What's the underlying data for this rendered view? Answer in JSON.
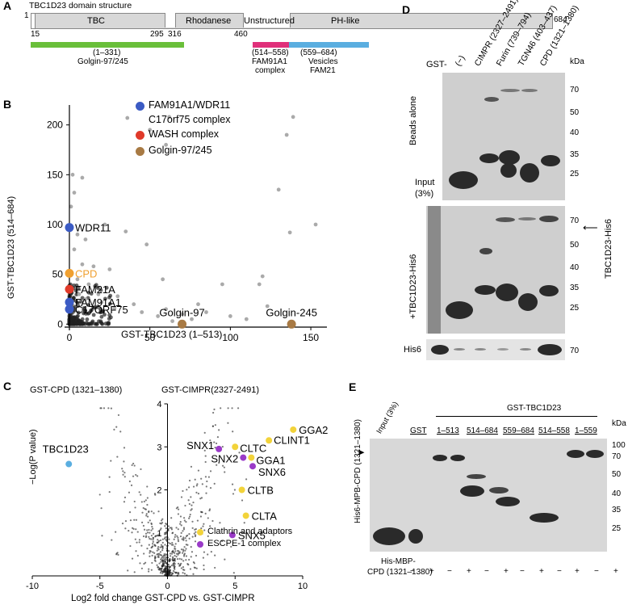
{
  "panels": {
    "A": "A",
    "B": "B",
    "C": "C",
    "D": "D",
    "E": "E"
  },
  "panelA": {
    "title": "TBC1D23 domain structure",
    "domains": [
      "TBC",
      "Rhodanese",
      "Unstructured",
      "PH-like"
    ],
    "positions": {
      "start": "1",
      "p15": "15",
      "p295": "295",
      "p316": "316",
      "p460": "460",
      "end": "684"
    },
    "bars": [
      {
        "range": "(1–331)",
        "label": "Golgin-97/245",
        "color": "#6abf3a"
      },
      {
        "range": "(514–558)",
        "label1": "FAM91A1",
        "label2": "complex",
        "color": "#e0307a"
      },
      {
        "range": "(559–684)",
        "label1": "Vesicles",
        "label2": "FAM21",
        "color": "#5aaee0"
      }
    ]
  },
  "panelB": {
    "xlabel": "GST-TBC1D23 (1–513)",
    "ylabel": "GST-TBC1D23 (514–684)",
    "legend": [
      {
        "label": "FAM91A1/WDR11",
        "label2": "C17orf75 complex",
        "color": "#3b5bc4"
      },
      {
        "label": "WASH complex",
        "color": "#e03a2a"
      },
      {
        "label": "Golgin-97/245",
        "color": "#a87a44"
      }
    ],
    "annotations": [
      "WDR11",
      "CPD",
      "FAM21A",
      "FAM91A1",
      "C17ORF75",
      "Golgin-97",
      "Golgin-245"
    ]
  },
  "chart_data": [
    {
      "type": "scatter",
      "xlabel": "GST-TBC1D23 (1–513)",
      "ylabel": "GST-TBC1D23 (514–684)",
      "xlim": [
        -3,
        160
      ],
      "ylim": [
        -3,
        220
      ],
      "xticks": [
        0,
        50,
        100,
        150
      ],
      "yticks": [
        0,
        50,
        100,
        150,
        200
      ],
      "highlighted": [
        {
          "name": "WDR11",
          "x": 0,
          "y": 97,
          "group": "FAM91A1/WDR11 C17orf75 complex",
          "color": "#3b5bc4"
        },
        {
          "name": "CPD",
          "x": 0,
          "y": 51,
          "group": "other",
          "color": "#f0a030"
        },
        {
          "name": "FAM21A",
          "x": 0,
          "y": 35,
          "group": "WASH complex",
          "color": "#e03a2a"
        },
        {
          "name": "FAM91A1",
          "x": 0,
          "y": 22,
          "group": "FAM91A1/WDR11 C17orf75 complex",
          "color": "#3b5bc4"
        },
        {
          "name": "C17ORF75",
          "x": 0,
          "y": 15,
          "group": "FAM91A1/WDR11 C17orf75 complex",
          "color": "#3b5bc4"
        },
        {
          "name": "Golgin-97",
          "x": 70,
          "y": 0,
          "group": "Golgin-97/245",
          "color": "#a87a44"
        },
        {
          "name": "Golgin-245",
          "x": 138,
          "y": 0,
          "group": "Golgin-97/245",
          "color": "#a87a44"
        }
      ],
      "background_points": [
        [
          36,
          207
        ],
        [
          50,
          195
        ],
        [
          62,
          208
        ],
        [
          60,
          180
        ],
        [
          139,
          208
        ],
        [
          135,
          190
        ],
        [
          130,
          135
        ],
        [
          153,
          100
        ],
        [
          137,
          92
        ],
        [
          120,
          48
        ],
        [
          95,
          40
        ],
        [
          58,
          45
        ],
        [
          48,
          80
        ],
        [
          35,
          93
        ],
        [
          8,
          147
        ],
        [
          2,
          150
        ],
        [
          3,
          132
        ],
        [
          1,
          118
        ],
        [
          22,
          100
        ],
        [
          5,
          90
        ],
        [
          10,
          85
        ],
        [
          3,
          75
        ],
        [
          8,
          60
        ],
        [
          15,
          58
        ],
        [
          25,
          55
        ],
        [
          5,
          45
        ],
        [
          12,
          40
        ],
        [
          18,
          30
        ],
        [
          30,
          28
        ],
        [
          40,
          20
        ],
        [
          6,
          30
        ],
        [
          10,
          25
        ],
        [
          20,
          22
        ],
        [
          28,
          16
        ],
        [
          45,
          12
        ],
        [
          55,
          8
        ],
        [
          60,
          15
        ],
        [
          70,
          10
        ],
        [
          80,
          20
        ],
        [
          85,
          12
        ],
        [
          100,
          8
        ],
        [
          110,
          5
        ],
        [
          118,
          40
        ],
        [
          123,
          18
        ],
        [
          76,
          5
        ],
        [
          64,
          3
        ]
      ]
    },
    {
      "type": "scatter",
      "xlabel": "Log2 fold change GST-CPD vs. GST-CIMPR",
      "ylabel": "−Log(P value)",
      "xlim": [
        -10,
        10
      ],
      "ylim": [
        0,
        4
      ],
      "xticks": [
        -10,
        -5,
        0,
        5,
        10
      ],
      "yticks": [
        1,
        2,
        3,
        4
      ],
      "highlighted": [
        {
          "name": "TBC1D23",
          "x": -7.3,
          "y": 2.6,
          "color": "#5aaee0"
        },
        {
          "name": "GGA2",
          "x": 9.3,
          "y": 3.4,
          "color": "#f2d33a"
        },
        {
          "name": "CLINT1",
          "x": 7.5,
          "y": 3.15,
          "color": "#f2d33a"
        },
        {
          "name": "CLTC",
          "x": 5.0,
          "y": 3.0,
          "color": "#f2d33a"
        },
        {
          "name": "GGA1",
          "x": 6.2,
          "y": 2.75,
          "color": "#f2d33a"
        },
        {
          "name": "SNX1",
          "x": 3.8,
          "y": 2.95,
          "color": "#9a3ac8"
        },
        {
          "name": "SNX2",
          "x": 5.6,
          "y": 2.75,
          "color": "#9a3ac8"
        },
        {
          "name": "SNX6",
          "x": 6.3,
          "y": 2.55,
          "color": "#9a3ac8"
        },
        {
          "name": "CLTB",
          "x": 5.5,
          "y": 2.0,
          "color": "#f2d33a"
        },
        {
          "name": "CLTA",
          "x": 5.8,
          "y": 1.4,
          "color": "#f2d33a"
        },
        {
          "name": "SNX5",
          "x": 4.8,
          "y": 0.95,
          "color": "#9a3ac8"
        }
      ],
      "legend": [
        {
          "label": "Clathrin and adaptors",
          "color": "#f2d33a"
        },
        {
          "label": "ESCPE-1 complex",
          "color": "#9a3ac8"
        }
      ]
    }
  ],
  "panelC": {
    "left_label": "GST-CPD (1321–1380)",
    "right_label": "GST-CIMPR(2327-2491)",
    "ylabel": "−Log(P value)",
    "xlabel": "Log2 fold change GST-CPD vs. GST-CIMPR",
    "legend": [
      "Clathrin and adaptors",
      "ESCPE-1 complex"
    ]
  },
  "panelD": {
    "gst_label": "GST-",
    "lanes": [
      "(−)",
      "CIMPR (2327–2491)",
      "Furin (739–794)",
      "TGN46 (403–437)",
      "CPD (1321–1380)"
    ],
    "kda": "kDa",
    "markers_top": [
      "70",
      "50",
      "40",
      "35",
      "25"
    ],
    "markers_mid": [
      "70",
      "50",
      "40",
      "35",
      "25"
    ],
    "marker_bottom": "70",
    "row_beads": "Beads alone",
    "input": "Input",
    "input_pct": "(3%)",
    "row_tbc": "+TBC1D23-His6",
    "right_tbc": "TBC1D23-His6",
    "his": "His6"
  },
  "panelE": {
    "header": "GST-TBC1D23",
    "input": "Input (3%)",
    "gst": "GST",
    "constructs": [
      "1–513",
      "514–684",
      "559–684",
      "514–558",
      "1–559"
    ],
    "kda": "kDa",
    "markers": [
      "100",
      "70",
      "50",
      "40",
      "35",
      "25"
    ],
    "side_label": "His6-MPB-CPD (1321–1380)",
    "bottom_label1": "His-MBP-",
    "bottom_label2": "CPD (1321–1380)",
    "signs": [
      "−",
      "+",
      "−",
      "+",
      "−",
      "+",
      "−",
      "+",
      "−",
      "+",
      "−",
      "+"
    ]
  }
}
